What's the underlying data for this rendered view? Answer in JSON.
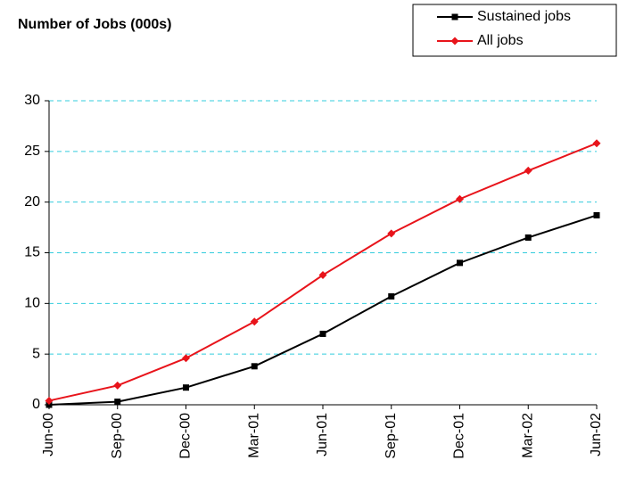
{
  "chart_data": {
    "type": "line",
    "title": "Number of Jobs (000s)",
    "categories": [
      "Jun-00",
      "Sep-00",
      "Dec-00",
      "Mar-01",
      "Jun-01",
      "Sep-01",
      "Dec-01",
      "Mar-02",
      "Jun-02"
    ],
    "series": [
      {
        "name": "Sustained jobs",
        "color": "#000000",
        "marker": "square",
        "values": [
          0,
          0.3,
          1.7,
          3.8,
          7.0,
          10.7,
          14.0,
          16.5,
          18.7
        ]
      },
      {
        "name": "All jobs",
        "color": "#e8141b",
        "marker": "diamond",
        "values": [
          0.4,
          1.9,
          4.6,
          8.2,
          12.8,
          16.9,
          20.3,
          23.1,
          25.8
        ]
      }
    ],
    "ylim": [
      0,
      30
    ],
    "yticks": [
      0,
      5,
      10,
      15,
      20,
      25,
      30
    ],
    "grid": true,
    "legend": "top-right"
  }
}
